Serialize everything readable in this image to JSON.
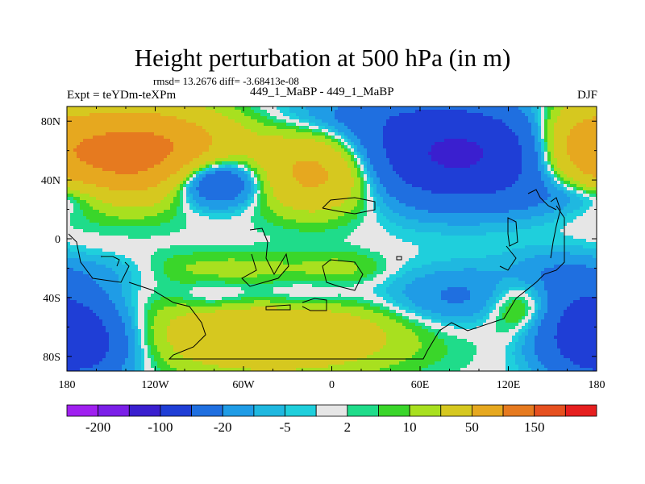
{
  "chart_data": {
    "type": "heatmap",
    "title": "Height perturbation at 500 hPa (in m)",
    "stats_line": "rmsd= 13.2676 diff= -3.68413e-08",
    "left_label": "Expt = teYDm-teXPm",
    "center_label": "449_1_MaBP - 449_1_MaBP",
    "right_label": "DJF",
    "x_range": [
      -180,
      180
    ],
    "y_range": [
      -90,
      90
    ],
    "x_ticks": [
      {
        "value": -180,
        "label": "180"
      },
      {
        "value": -120,
        "label": "120W"
      },
      {
        "value": -60,
        "label": "60W"
      },
      {
        "value": 0,
        "label": "0"
      },
      {
        "value": 60,
        "label": "60E"
      },
      {
        "value": 120,
        "label": "120E"
      },
      {
        "value": 180,
        "label": "180"
      }
    ],
    "y_ticks": [
      {
        "value": 80,
        "label": "80N"
      },
      {
        "value": 40,
        "label": "40N"
      },
      {
        "value": 0,
        "label": "0"
      },
      {
        "value": -40,
        "label": "40S"
      },
      {
        "value": -80,
        "label": "80S"
      }
    ],
    "colorbar": {
      "colors": [
        "#a020f0",
        "#7b1fe8",
        "#3a1fcf",
        "#1f3ed6",
        "#1f6fe0",
        "#1f9ce6",
        "#1fb8e0",
        "#1fcfdc",
        "#e6e6e6",
        "#1fdc8a",
        "#3ad62a",
        "#a8e01f",
        "#d6c81f",
        "#e6a81f",
        "#e67a1f",
        "#e6501f",
        "#e61f1f"
      ],
      "labels": [
        {
          "after_box": 1,
          "text": "-200"
        },
        {
          "after_box": 3,
          "text": "-100"
        },
        {
          "after_box": 5,
          "text": "-20"
        },
        {
          "after_box": 7,
          "text": "-5"
        },
        {
          "after_box": 9,
          "text": "2"
        },
        {
          "after_box": 11,
          "text": "10"
        },
        {
          "after_box": 13,
          "text": "50"
        },
        {
          "after_box": 15,
          "text": "150"
        }
      ]
    },
    "field_features": [
      {
        "lon": -140,
        "lat": 58,
        "peak": 120,
        "sx": 38,
        "sy": 20
      },
      {
        "lon": -95,
        "lat": 62,
        "peak": 25,
        "sx": 35,
        "sy": 18
      },
      {
        "lon": -80,
        "lat": 40,
        "peak": -70,
        "sx": 22,
        "sy": 12
      },
      {
        "lon": -10,
        "lat": 45,
        "peak": 65,
        "sx": 28,
        "sy": 18
      },
      {
        "lon": 20,
        "lat": 85,
        "peak": -18,
        "sx": 40,
        "sy": 10
      },
      {
        "lon": 85,
        "lat": 58,
        "peak": -110,
        "sx": 45,
        "sy": 22
      },
      {
        "lon": 165,
        "lat": 65,
        "peak": 45,
        "sx": 22,
        "sy": 20
      },
      {
        "lon": 150,
        "lat": 30,
        "peak": -14,
        "sx": 30,
        "sy": 10
      },
      {
        "lon": -175,
        "lat": 30,
        "peak": -14,
        "sx": 20,
        "sy": 8
      },
      {
        "lon": -150,
        "lat": -22,
        "peak": -10,
        "sx": 25,
        "sy": 8
      },
      {
        "lon": -70,
        "lat": -20,
        "peak": 12,
        "sx": 50,
        "sy": 8
      },
      {
        "lon": 10,
        "lat": -20,
        "peak": 9,
        "sx": 20,
        "sy": 8
      },
      {
        "lon": -175,
        "lat": -40,
        "peak": -6,
        "sx": 25,
        "sy": 10
      },
      {
        "lon": -80,
        "lat": -40,
        "peak": -12,
        "sx": 18,
        "sy": 8
      },
      {
        "lon": -25,
        "lat": -40,
        "peak": -15,
        "sx": 30,
        "sy": 9
      },
      {
        "lon": 90,
        "lat": -40,
        "peak": -25,
        "sx": 40,
        "sy": 14
      },
      {
        "lon": 150,
        "lat": -25,
        "peak": -18,
        "sx": 25,
        "sy": 12
      },
      {
        "lon": -170,
        "lat": -72,
        "peak": -60,
        "sx": 25,
        "sy": 18
      },
      {
        "lon": -40,
        "lat": -65,
        "peak": 50,
        "sx": 60,
        "sy": 18
      },
      {
        "lon": 130,
        "lat": -45,
        "peak": 35,
        "sx": 18,
        "sy": 14
      },
      {
        "lon": 170,
        "lat": -60,
        "peak": -50,
        "sx": 25,
        "sy": 20
      }
    ]
  }
}
